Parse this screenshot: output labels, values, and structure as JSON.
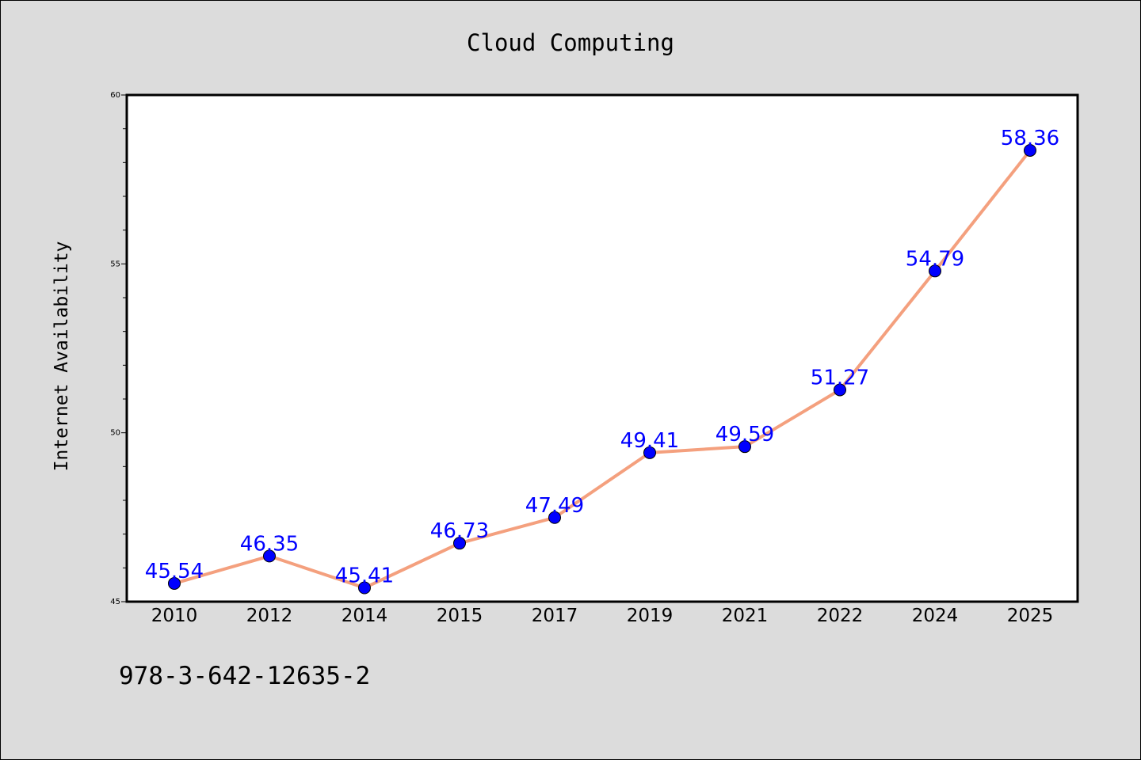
{
  "chart_data": {
    "type": "line",
    "title": "Cloud Computing",
    "xlabel": "",
    "ylabel": "Internet Availability",
    "categories": [
      "2010",
      "2012",
      "2014",
      "2015",
      "2017",
      "2019",
      "2021",
      "2022",
      "2024",
      "2025"
    ],
    "series": [
      {
        "values": [
          45.54,
          46.35,
          45.41,
          46.73,
          47.49,
          49.41,
          49.59,
          51.27,
          54.79,
          58.36
        ]
      }
    ],
    "data_labels": [
      "45.54",
      "46.35",
      "45.41",
      "46.73",
      "47.49",
      "49.41",
      "49.59",
      "51.27",
      "54.79",
      "58.36"
    ],
    "ylim": [
      45,
      60
    ],
    "yticks": [
      45,
      50,
      55,
      60
    ],
    "ytick_labels": [
      "45",
      "50",
      "55",
      "60"
    ],
    "grid": false,
    "line_color": "#f4a07e",
    "marker_color": "#0000ff",
    "label_color": "#0000ff"
  },
  "footer_text": "978-3-642-12635-2"
}
